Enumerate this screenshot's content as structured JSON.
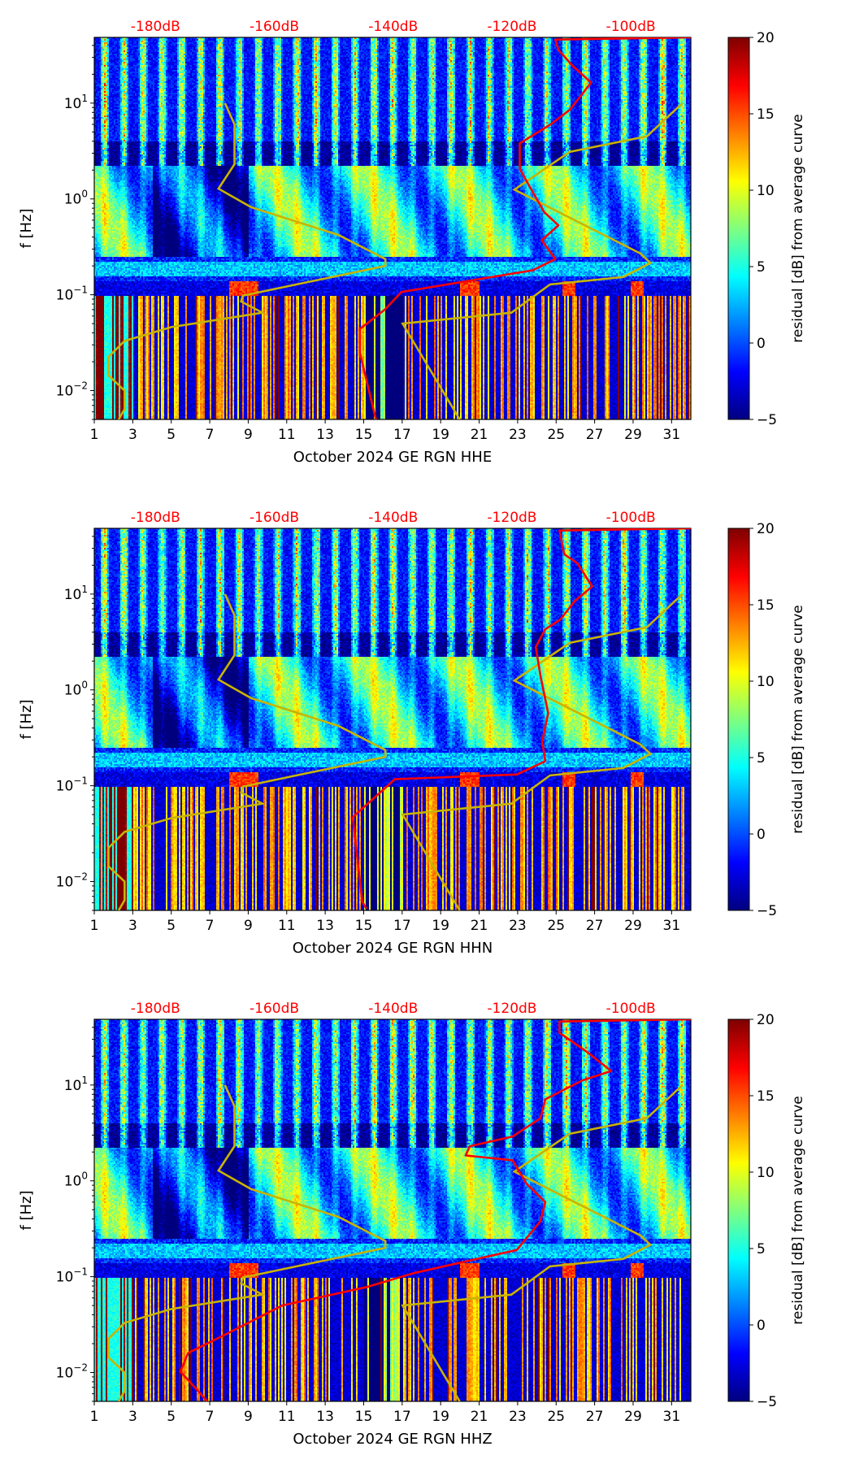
{
  "chart_data": {
    "type": "heatmap",
    "description_axes": {
      "x_range_day": [
        1,
        32
      ],
      "x_ticks": [
        1,
        3,
        5,
        7,
        9,
        11,
        13,
        15,
        17,
        19,
        21,
        23,
        25,
        27,
        29,
        31
      ],
      "y_scale": "log",
      "y_range_hz": [
        0.005,
        48.5
      ],
      "y_ticks": [
        0.01,
        0.1,
        1,
        10
      ],
      "y_tick_labels": [
        "10^-2",
        "10^-1",
        "10^0",
        "10^1"
      ],
      "ylabel": "f [Hz]",
      "top_axis_range_db": [
        -190.3,
        -89.9
      ],
      "top_ticks_db": [
        -180,
        -160,
        -140,
        -120,
        -100
      ],
      "top_tick_labels": [
        "-180dB",
        "-160dB",
        "-140dB",
        "-120dB",
        "-100dB"
      ],
      "top_axis_color": "#ff0000"
    },
    "colorbar": {
      "label": "residual [dB] from average curve",
      "range": [
        -5,
        20
      ],
      "ticks": [
        -5,
        0,
        5,
        10,
        15,
        20
      ],
      "tick_labels": [
        "−5",
        "0",
        "5",
        "10",
        "15",
        "20"
      ],
      "colormap": "jet"
    },
    "model_curves_color": "#c8b400",
    "psd_curve_color": "#ff0000",
    "nlnm": {
      "name": "NLNM",
      "points": [
        [
          -168.3,
          10
        ],
        [
          -166.7,
          6.0
        ],
        [
          -166.7,
          2.3
        ],
        [
          -169.4,
          1.28
        ],
        [
          -163.9,
          0.82
        ],
        [
          -149.2,
          0.42
        ],
        [
          -141.3,
          0.236
        ],
        [
          -141.3,
          0.2
        ],
        [
          -165.3,
          0.098
        ],
        [
          -165.6,
          0.085
        ],
        [
          -162.0,
          0.065
        ],
        [
          -177.3,
          0.046
        ],
        [
          -185.2,
          0.033
        ],
        [
          -187.9,
          0.0225
        ],
        [
          -187.9,
          0.0144
        ],
        [
          -185.2,
          0.01
        ],
        [
          -185.2,
          0.0064
        ],
        [
          -186.2,
          0.005
        ]
      ]
    },
    "nhnm": {
      "name": "NHNM",
      "points": [
        [
          -91.3,
          10
        ],
        [
          -97.3,
          4.5
        ],
        [
          -110.3,
          3.1
        ],
        [
          -119.6,
          1.25
        ],
        [
          -98.4,
          0.27
        ],
        [
          -96.7,
          0.215
        ],
        [
          -101.3,
          0.153
        ],
        [
          -113.6,
          0.128
        ],
        [
          -120.1,
          0.065
        ],
        [
          -138.4,
          0.05
        ],
        [
          -128.8,
          0.005
        ]
      ]
    },
    "panels": [
      {
        "xlabel": "October 2024 GE RGN  HHE",
        "channel": "HHE",
        "psd_curve": [
          [
            -89.9,
            48.5
          ],
          [
            -112.7,
            46
          ],
          [
            -112.2,
            36
          ],
          [
            -109.8,
            24.5
          ],
          [
            -106.7,
            16.4
          ],
          [
            -108.1,
            12.6
          ],
          [
            -110.3,
            8.5
          ],
          [
            -113.5,
            6
          ],
          [
            -118.7,
            3.8
          ],
          [
            -118.7,
            2.06
          ],
          [
            -117.3,
            1.44
          ],
          [
            -114.6,
            0.73
          ],
          [
            -112.2,
            0.53
          ],
          [
            -115.0,
            0.37
          ],
          [
            -112.7,
            0.236
          ],
          [
            -116.5,
            0.18
          ],
          [
            -138.6,
            0.107
          ],
          [
            -141.4,
            0.07
          ],
          [
            -145.6,
            0.044
          ],
          [
            -145.6,
            0.0247
          ],
          [
            -142.9,
            0.005
          ]
        ]
      },
      {
        "xlabel": "October 2024 GE RGN  HHN",
        "channel": "HHN",
        "psd_curve": [
          [
            -89.9,
            48.5
          ],
          [
            -112.0,
            46
          ],
          [
            -111.2,
            26
          ],
          [
            -109.0,
            21
          ],
          [
            -106.5,
            12
          ],
          [
            -109.4,
            8.5
          ],
          [
            -111.9,
            5.4
          ],
          [
            -114.4,
            4.3
          ],
          [
            -116.0,
            2.8
          ],
          [
            -115.2,
            1.4
          ],
          [
            -113.9,
            0.57
          ],
          [
            -114.9,
            0.29
          ],
          [
            -114.4,
            0.18
          ],
          [
            -119.2,
            0.131
          ],
          [
            -139.7,
            0.117
          ],
          [
            -146.8,
            0.047
          ],
          [
            -145.2,
            0.0062
          ],
          [
            -144.5,
            0.0052
          ]
        ]
      },
      {
        "xlabel": "October 2024 GE RGN  HHZ",
        "channel": "HHZ",
        "psd_curve": [
          [
            -89.9,
            48.5
          ],
          [
            -112.0,
            46
          ],
          [
            -112.0,
            35
          ],
          [
            -107.3,
            22
          ],
          [
            -103.3,
            14
          ],
          [
            -108.1,
            11.2
          ],
          [
            -114.4,
            7.1
          ],
          [
            -115.2,
            4.5
          ],
          [
            -119.9,
            2.9
          ],
          [
            -127.1,
            2.3
          ],
          [
            -127.8,
            1.84
          ],
          [
            -119.9,
            1.64
          ],
          [
            -117.6,
            0.94
          ],
          [
            -114.4,
            0.6
          ],
          [
            -115.2,
            0.38
          ],
          [
            -119.2,
            0.19
          ],
          [
            -136.5,
            0.109
          ],
          [
            -144.4,
            0.078
          ],
          [
            -158.7,
            0.05
          ],
          [
            -168.2,
            0.025
          ],
          [
            -174.5,
            0.016
          ],
          [
            -175.8,
            0.0102
          ],
          [
            -172.9,
            0.0065
          ],
          [
            -171.3,
            0.005
          ]
        ]
      }
    ]
  }
}
